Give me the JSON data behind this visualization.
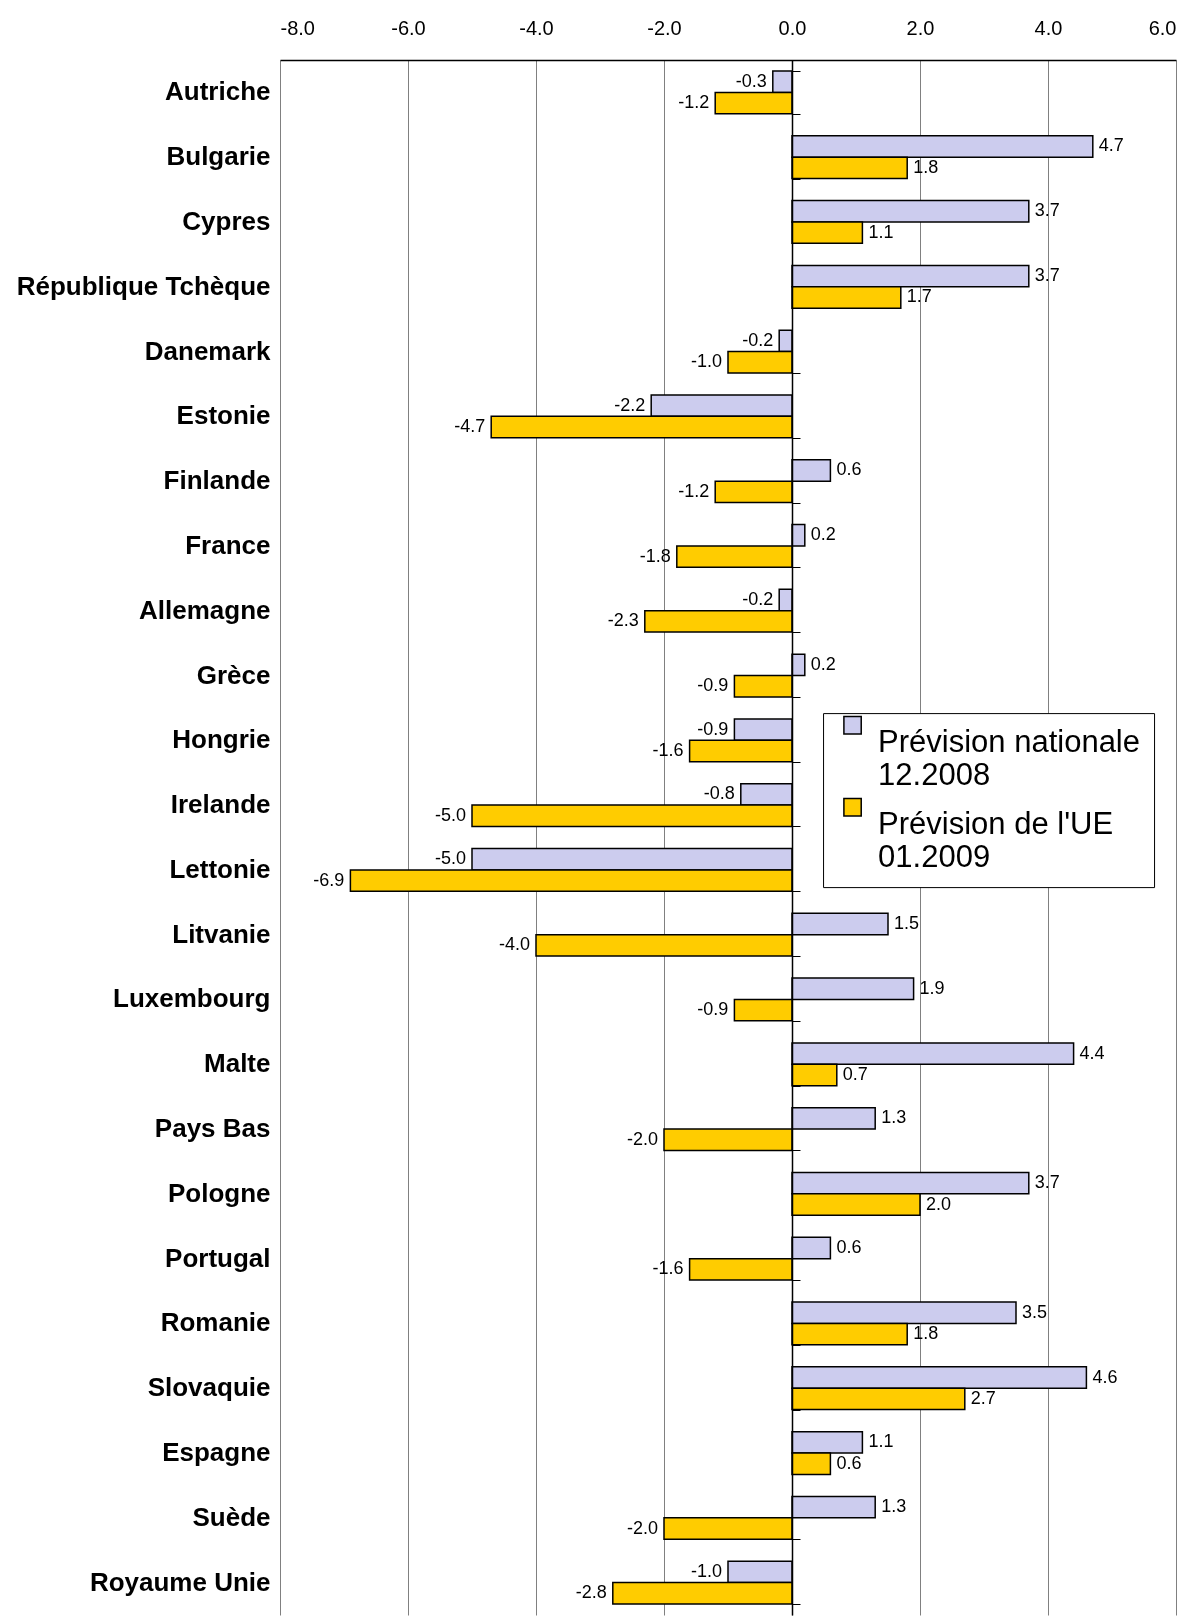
{
  "chart_data": {
    "type": "bar",
    "orientation": "horizontal",
    "categories": [
      "Autriche",
      "Bulgarie",
      "Cypres",
      "République Tchèque",
      "Danemark",
      "Estonie",
      "Finlande",
      "France",
      "Allemagne",
      "Grèce",
      "Hongrie",
      "Irelande",
      "Lettonie",
      "Litvanie",
      "Luxembourg",
      "Malte",
      "Pays Bas",
      "Pologne",
      "Portugal",
      "Romanie",
      "Slovaquie",
      "Espagne",
      "Suède",
      "Royaume Unie"
    ],
    "series": [
      {
        "name": "Prévision nationale 12.2008",
        "color": "#ccccee",
        "values": [
          -0.3,
          4.7,
          3.7,
          3.7,
          -0.2,
          -2.2,
          0.6,
          0.2,
          -0.2,
          0.2,
          -0.9,
          -0.8,
          -5.0,
          1.5,
          1.9,
          4.4,
          1.3,
          3.7,
          0.6,
          3.5,
          4.6,
          1.1,
          1.3,
          -1.0
        ],
        "value_labels": [
          "-0.3",
          "4.7",
          "3.7",
          "3.7",
          "-0.2",
          "-2.2",
          "0.6",
          "0.2",
          "-0.2",
          "0.2",
          "-0.9",
          "-0.8",
          "-5.0",
          "1.5",
          "1.9",
          "4.4",
          "1.3",
          "3.7",
          "0.6",
          "3.5",
          "4.6",
          "1.1",
          "1.3",
          "-1.0"
        ]
      },
      {
        "name": "Prévision de l'UE 01.2009",
        "color": "#ffcc00",
        "values": [
          -1.2,
          1.8,
          1.1,
          1.7,
          -1.0,
          -4.7,
          -1.2,
          -1.8,
          -2.3,
          -0.9,
          -1.6,
          -5.0,
          -6.9,
          -4.0,
          -0.9,
          0.7,
          -2.0,
          2.0,
          -1.6,
          1.8,
          2.7,
          0.6,
          -2.0,
          -2.8
        ],
        "value_labels": [
          "-1.2",
          "1.8",
          "1.1",
          "1.7",
          "-1.0",
          "-4.7",
          "-1.2",
          "-1.8",
          "-2.3",
          "-0.9",
          "-1.6",
          "-5.0",
          "-6.9",
          "-4.0",
          "-0.9",
          "0.7",
          "-2.0",
          "2.0",
          "-1.6",
          "1.8",
          "2.7",
          "0.6",
          "-2.0",
          "-2.8"
        ]
      }
    ],
    "xlim": [
      -8,
      6
    ],
    "xticks": [
      {
        "value": -8,
        "label": "-8.0"
      },
      {
        "value": -6,
        "label": "-6.0"
      },
      {
        "value": -4,
        "label": "-4.0"
      },
      {
        "value": -2,
        "label": "-2.0"
      },
      {
        "value": 0,
        "label": "0.0"
      },
      {
        "value": 2,
        "label": "2.0"
      },
      {
        "value": 4,
        "label": "4.0"
      },
      {
        "value": 6,
        "label": "6.0"
      }
    ],
    "grid": "x",
    "legend": "right"
  }
}
